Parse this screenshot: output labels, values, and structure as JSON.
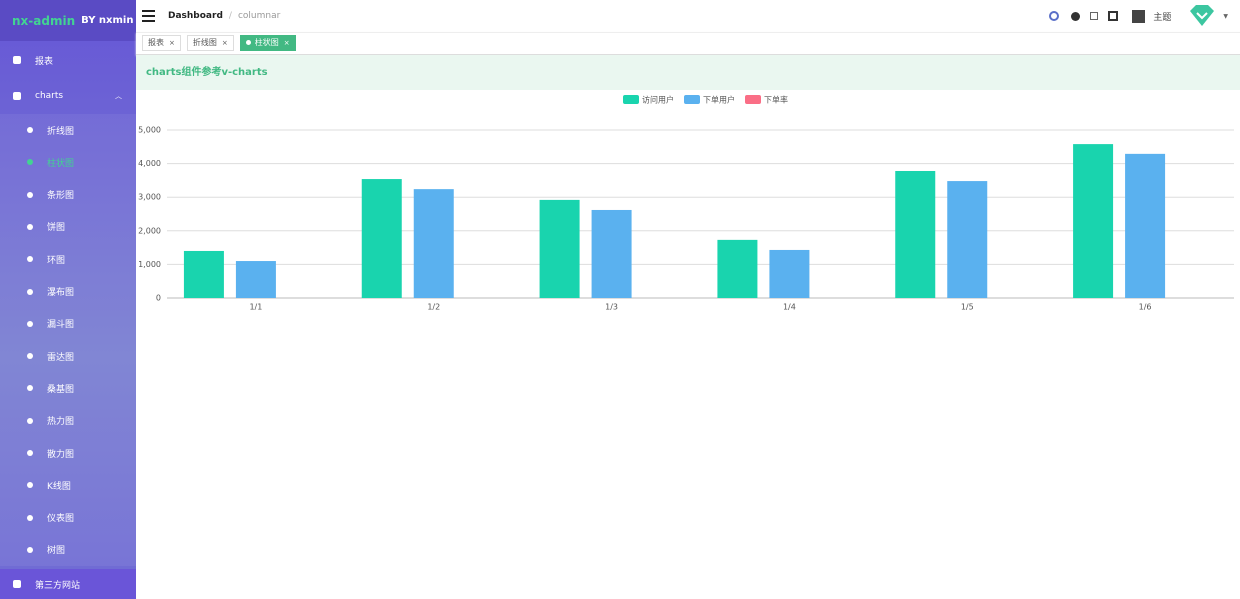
{
  "sidebar": {
    "logo": "nx-admin",
    "author": "BY nxmin",
    "items": [
      "报表",
      "charts"
    ],
    "submenu": [
      "折线图",
      "柱状图",
      "条形图",
      "饼图",
      "环图",
      "瀑布图",
      "漏斗图",
      "雷达图",
      "桑基图",
      "热力图",
      "散力图",
      "K线图",
      "仪表图",
      "树图"
    ],
    "footer_item": "第三方网站"
  },
  "header": {
    "breadcrumb": [
      "Dashboard",
      "columnar"
    ],
    "theme_label": "主题"
  },
  "tabs": [
    "报表",
    "折线图",
    "柱状图"
  ],
  "banner": {
    "title": "charts组件参考v-charts"
  },
  "chart_data": {
    "type": "bar",
    "categories": [
      "1/1",
      "1/2",
      "1/3",
      "1/4",
      "1/5",
      "1/6"
    ],
    "series": [
      {
        "name": "访问用户",
        "color": "#19d4ae",
        "values": [
          1400,
          3540,
          2920,
          1730,
          3780,
          4580
        ]
      },
      {
        "name": "下单用户",
        "color": "#5ab1ef",
        "values": [
          1100,
          3240,
          2620,
          1430,
          3480,
          4290
        ]
      },
      {
        "name": "下单率",
        "color": "#fa6e86",
        "values": [
          null,
          null,
          null,
          null,
          null,
          null
        ]
      }
    ],
    "ylim": [
      0,
      5000
    ],
    "yticks": [
      0,
      {
        "value": 1000,
        "label": "1,000"
      },
      {
        "value": 2000,
        "label": "2,000"
      },
      {
        "value": 3000,
        "label": "3,000"
      },
      {
        "value": 4000,
        "label": "4,000"
      },
      {
        "value": 5000,
        "label": "5,000"
      }
    ],
    "grid": true,
    "legend": "top"
  }
}
